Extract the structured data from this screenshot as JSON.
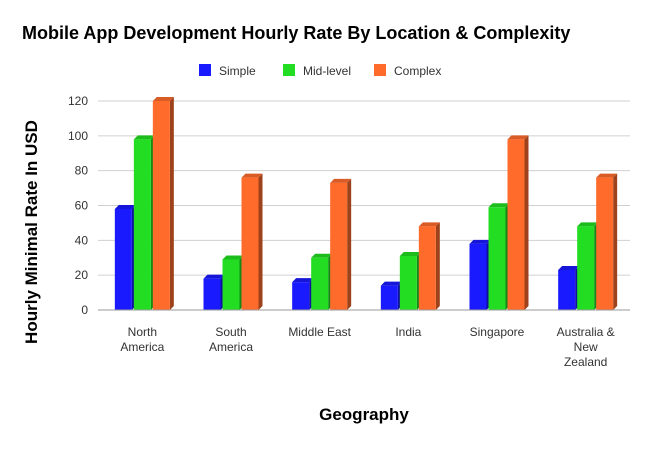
{
  "chart_data": {
    "type": "bar",
    "title": "Mobile App Development Hourly Rate By Location & Complexity",
    "xlabel": "Geography",
    "ylabel": "Hourly Minimal Rate In USD",
    "categories": [
      [
        "North",
        "America"
      ],
      [
        "South",
        "America"
      ],
      [
        "Middle East"
      ],
      [
        "India"
      ],
      [
        "Singapore"
      ],
      [
        "Australia &",
        "New",
        "Zealand"
      ]
    ],
    "series": [
      {
        "name": "Simple",
        "color": "#1a1aff",
        "values": [
          58,
          18,
          16,
          14,
          38,
          23
        ]
      },
      {
        "name": "Mid-level",
        "color": "#22dd22",
        "values": [
          98,
          29,
          30,
          31,
          59,
          48
        ]
      },
      {
        "name": "Complex",
        "color": "#ff6b2b",
        "values": [
          120,
          76,
          73,
          48,
          98,
          76
        ]
      }
    ],
    "ylim": [
      0,
      120
    ],
    "yticks": [
      0,
      20,
      40,
      60,
      80,
      100,
      120
    ],
    "grid": true,
    "legend": "top-center"
  }
}
